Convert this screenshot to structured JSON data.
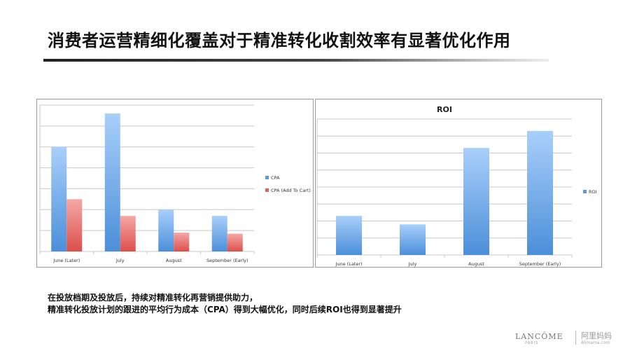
{
  "page": {
    "title": "消费者运营精细化覆盖对于精准转化收割效率有显著优化作用",
    "footer_line1": "在投放档期及投放后，持续对精准转化再营销提供助力，",
    "footer_line2": "精准转化投放计划的跟进的平均行为成本（CPA）得到大幅优化，同时后续ROI也得到显著提升",
    "brand": "LANCÔME",
    "brand_sub": "PARIS",
    "site": "阿里妈妈",
    "site_sub": "Alimama.com"
  },
  "chart_data": [
    {
      "type": "bar",
      "title": "",
      "categories": [
        "June (Later)",
        "July",
        "August",
        "September (Early)"
      ],
      "series": [
        {
          "name": "CPA",
          "values": [
            5,
            6.6,
            2,
            1.7
          ],
          "color": "#5b9bd5"
        },
        {
          "name": "CPA (Add To Cart)",
          "values": [
            2.5,
            1.7,
            0.9,
            0.85
          ],
          "color": "#e0605e"
        }
      ],
      "ylim": [
        0,
        7
      ],
      "y_ticks": [
        0,
        1,
        2,
        3,
        4,
        5,
        6,
        7
      ],
      "tick_labels_shown": false,
      "grid": true,
      "legend": "right"
    },
    {
      "type": "bar",
      "title": "ROI",
      "categories": [
        "June (Later)",
        "July",
        "August",
        "September (Early)"
      ],
      "series": [
        {
          "name": "ROI",
          "values": [
            2.3,
            1.8,
            6.3,
            7.3
          ],
          "color": "#5b9bd5"
        }
      ],
      "ylim": [
        0,
        8
      ],
      "y_ticks": [
        0,
        1,
        2,
        3,
        4,
        5,
        6,
        7,
        8
      ],
      "tick_labels_shown": false,
      "grid": true,
      "legend": "right"
    }
  ]
}
